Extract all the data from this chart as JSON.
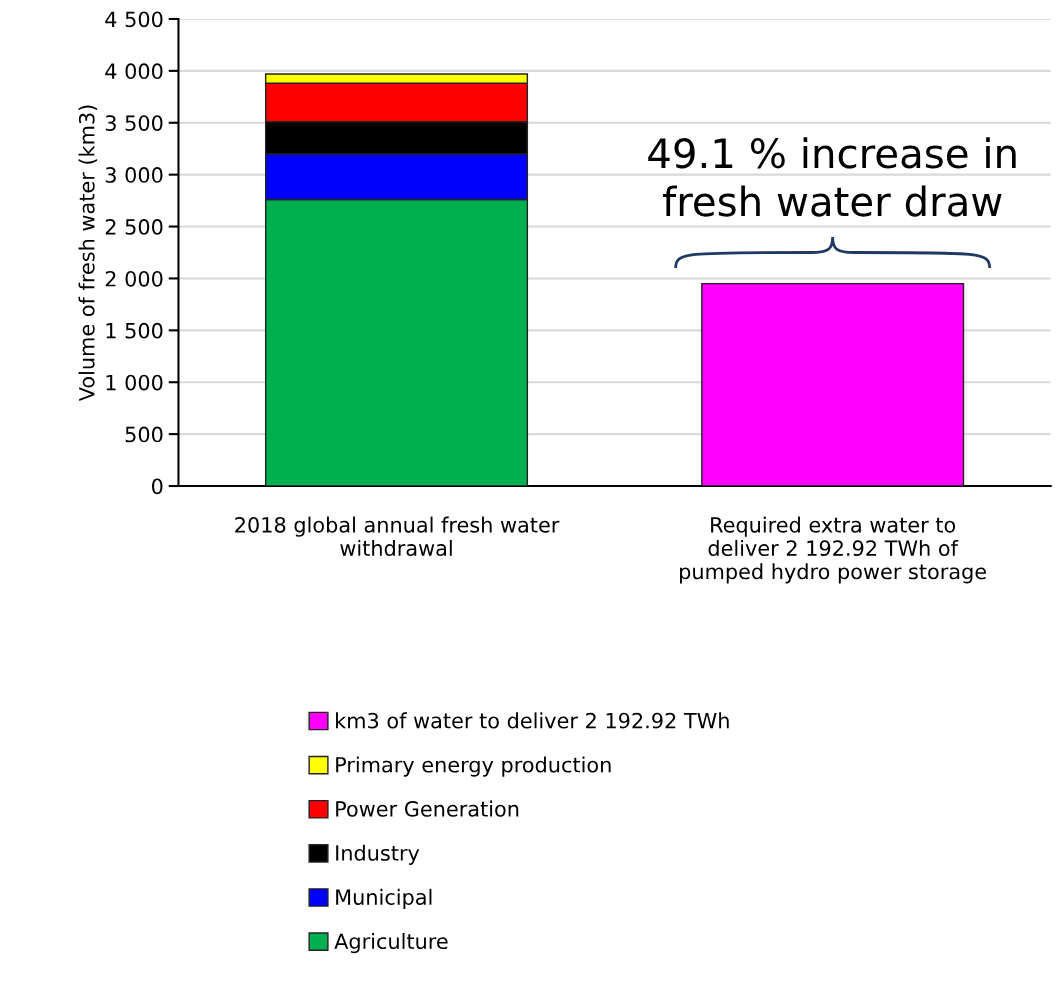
{
  "chart_data": {
    "type": "bar",
    "stacked": true,
    "ylabel": "Volume of fresh water (km3)",
    "categories": [
      "2018 global annual fresh water\nwithdrawal",
      "Required extra water to\ndeliver 2 192.92 TWh of\npumped hydro power storage"
    ],
    "series": [
      {
        "name": "Agriculture",
        "color": "#00b050",
        "values": [
          2760,
          null
        ]
      },
      {
        "name": "Municipal",
        "color": "#0000ff",
        "values": [
          440,
          null
        ]
      },
      {
        "name": "Industry",
        "color": "#000000",
        "values": [
          310,
          null
        ]
      },
      {
        "name": "Power Generation",
        "color": "#ff0000",
        "values": [
          370,
          null
        ]
      },
      {
        "name": "Primary energy production",
        "color": "#ffff00",
        "values": [
          90,
          null
        ]
      },
      {
        "name": "km3 of water to deliver 2 192.92 TWh",
        "color": "#ff00ff",
        "values": [
          null,
          1950
        ]
      }
    ],
    "ylim": [
      0,
      4500
    ],
    "yticks": [
      0,
      500,
      {
        "value": 1000,
        "label": "1 000"
      },
      {
        "value": 1500,
        "label": "1 500"
      },
      {
        "value": 2000,
        "label": "2 000"
      },
      {
        "value": 2500,
        "label": "2 500"
      },
      {
        "value": 3000,
        "label": "3 000"
      },
      {
        "value": 3500,
        "label": "3 500"
      },
      {
        "value": 4000,
        "label": "4 000"
      },
      {
        "value": 4500,
        "label": "4 500"
      }
    ],
    "grid": "y",
    "legend": "bottom",
    "annotations": [
      {
        "text": "49.1 % increase in\nfresh water draw",
        "x": "Required extra water to\ndeliver 2 192.92 TWh of\npumped hydro power storage",
        "y": 1950
      }
    ]
  }
}
